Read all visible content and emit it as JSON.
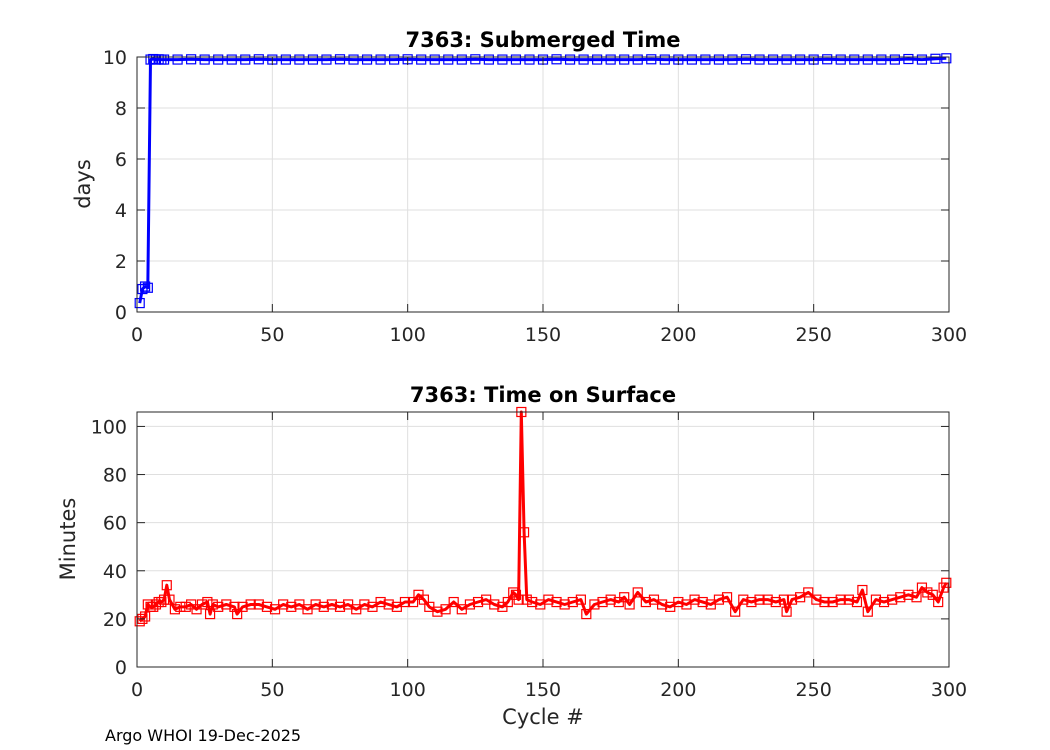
{
  "footer": "Argo WHOI 19-Dec-2025",
  "colors": {
    "submerged": "#0000ff",
    "surface": "#ff0000",
    "grid": "#dfdfdf",
    "axis": "#262626"
  },
  "chart_data": [
    {
      "type": "line",
      "title": "7363: Submerged Time",
      "xlabel": "",
      "ylabel": "days",
      "xlim": [
        0,
        300
      ],
      "ylim": [
        0,
        10
      ],
      "xticks": [
        0,
        50,
        100,
        150,
        200,
        250,
        300
      ],
      "yticks": [
        0,
        2,
        4,
        6,
        8,
        10
      ],
      "xtick_labels": [
        "0",
        "50",
        "100",
        "150",
        "200",
        "250",
        "300"
      ],
      "ytick_labels": [
        "0",
        "2",
        "4",
        "6",
        "8",
        "10"
      ],
      "grid": true,
      "marker": "square",
      "series": [
        {
          "name": "Submerged Time",
          "color": "#0000ff",
          "x": [
            1,
            2,
            3,
            4,
            5,
            6,
            7,
            8,
            9,
            10,
            15,
            20,
            25,
            30,
            35,
            40,
            45,
            50,
            55,
            60,
            65,
            70,
            75,
            80,
            85,
            90,
            95,
            100,
            105,
            110,
            115,
            120,
            125,
            130,
            135,
            140,
            145,
            150,
            155,
            160,
            165,
            170,
            175,
            180,
            185,
            190,
            195,
            200,
            205,
            210,
            215,
            220,
            225,
            230,
            235,
            240,
            245,
            250,
            255,
            260,
            265,
            270,
            275,
            280,
            285,
            290,
            295,
            299
          ],
          "y": [
            0.35,
            0.9,
            1.0,
            0.95,
            9.9,
            9.92,
            9.9,
            9.91,
            9.9,
            9.9,
            9.9,
            9.91,
            9.9,
            9.9,
            9.9,
            9.9,
            9.91,
            9.9,
            9.9,
            9.9,
            9.9,
            9.9,
            9.91,
            9.9,
            9.9,
            9.9,
            9.9,
            9.91,
            9.9,
            9.9,
            9.9,
            9.9,
            9.91,
            9.9,
            9.9,
            9.9,
            9.9,
            9.9,
            9.91,
            9.9,
            9.9,
            9.9,
            9.9,
            9.9,
            9.9,
            9.91,
            9.9,
            9.9,
            9.9,
            9.9,
            9.9,
            9.9,
            9.91,
            9.9,
            9.9,
            9.9,
            9.9,
            9.9,
            9.91,
            9.9,
            9.9,
            9.9,
            9.9,
            9.9,
            9.92,
            9.9,
            9.93,
            9.95
          ]
        }
      ]
    },
    {
      "type": "line",
      "title": "7363: Time on Surface",
      "xlabel": "Cycle #",
      "ylabel": "Minutes",
      "xlim": [
        0,
        300
      ],
      "ylim": [
        0,
        106
      ],
      "xticks": [
        0,
        50,
        100,
        150,
        200,
        250,
        300
      ],
      "yticks": [
        0,
        20,
        40,
        60,
        80,
        100
      ],
      "xtick_labels": [
        "0",
        "50",
        "100",
        "150",
        "200",
        "250",
        "300"
      ],
      "ytick_labels": [
        "0",
        "20",
        "40",
        "60",
        "80",
        "100"
      ],
      "grid": true,
      "marker": "square",
      "series": [
        {
          "name": "Time on Surface",
          "color": "#ff0000",
          "x": [
            1,
            2,
            3,
            4,
            5,
            6,
            7,
            8,
            9,
            10,
            11,
            12,
            14,
            16,
            18,
            20,
            22,
            24,
            26,
            27,
            28,
            30,
            33,
            36,
            37,
            39,
            42,
            45,
            48,
            51,
            54,
            57,
            60,
            63,
            66,
            69,
            72,
            75,
            78,
            81,
            84,
            87,
            90,
            93,
            96,
            99,
            102,
            104,
            106,
            108,
            111,
            114,
            117,
            120,
            123,
            126,
            129,
            132,
            135,
            137,
            139,
            140,
            141,
            142,
            143,
            144,
            146,
            149,
            152,
            155,
            158,
            161,
            164,
            166,
            169,
            172,
            175,
            178,
            180,
            182,
            185,
            188,
            191,
            194,
            197,
            200,
            203,
            206,
            209,
            212,
            215,
            218,
            221,
            224,
            227,
            230,
            233,
            236,
            239,
            240,
            242,
            245,
            248,
            251,
            254,
            257,
            260,
            263,
            266,
            268,
            270,
            273,
            276,
            279,
            282,
            285,
            288,
            290,
            292,
            294,
            296,
            298,
            299
          ],
          "y": [
            19,
            20,
            21,
            26,
            25,
            25,
            26,
            27,
            27,
            28,
            34,
            28,
            24,
            25,
            25,
            26,
            24,
            26,
            27,
            22,
            26,
            25,
            26,
            25,
            22,
            25,
            26,
            26,
            25,
            24,
            26,
            25,
            26,
            24,
            26,
            25,
            26,
            25,
            26,
            24,
            26,
            25,
            27,
            26,
            25,
            27,
            27,
            30,
            28,
            25,
            23,
            24,
            27,
            24,
            26,
            27,
            28,
            26,
            25,
            27,
            31,
            30,
            28,
            106,
            56,
            28,
            27,
            26,
            28,
            27,
            26,
            27,
            28,
            22,
            26,
            27,
            28,
            27,
            29,
            26,
            31,
            27,
            28,
            26,
            25,
            27,
            26,
            28,
            27,
            26,
            28,
            29,
            23,
            28,
            27,
            28,
            28,
            27,
            28,
            23,
            28,
            29,
            31,
            28,
            27,
            27,
            28,
            28,
            27,
            32,
            23,
            28,
            27,
            28,
            29,
            30,
            29,
            33,
            31,
            30,
            27,
            33,
            35
          ]
        }
      ]
    }
  ]
}
